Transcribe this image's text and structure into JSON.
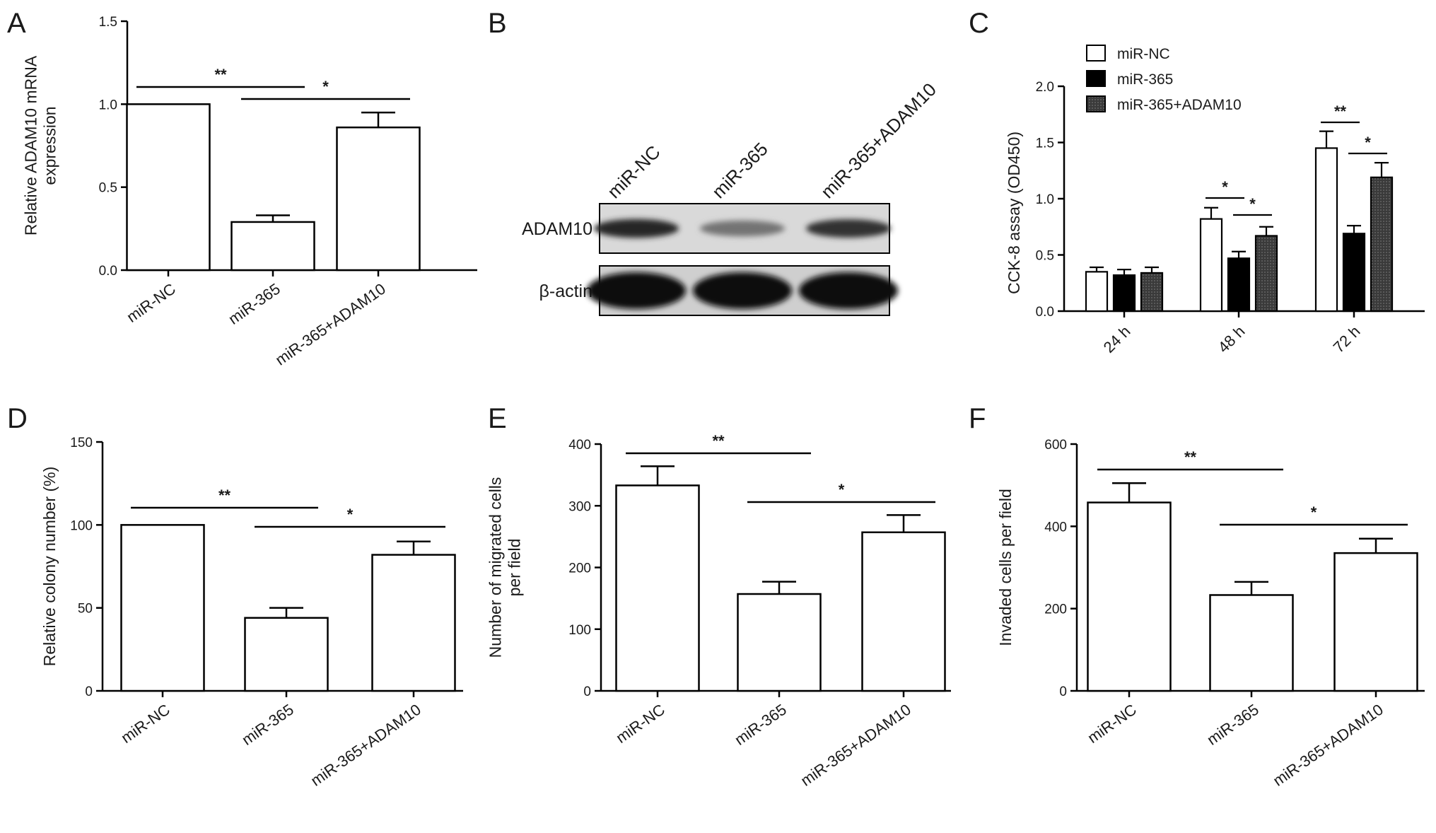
{
  "chart_data": [
    {
      "id": "A",
      "type": "bar",
      "panel_label": "A",
      "ylabel": [
        "Relative ADAM10 mRNA",
        "expression"
      ],
      "categories": [
        "miR-NC",
        "miR-365",
        "miR-365+ADAM10"
      ],
      "values": [
        1.0,
        0.29,
        0.86
      ],
      "errors": [
        0,
        0.04,
        0.09
      ],
      "ylim": [
        0,
        1.5
      ],
      "yticks": [
        "0.0",
        "0.5",
        "1.0",
        "1.5"
      ],
      "significance": [
        {
          "from": 0,
          "to": 1,
          "label": "**"
        },
        {
          "from": 1,
          "to": 2,
          "label": "*"
        }
      ]
    },
    {
      "id": "C",
      "type": "grouped-bar",
      "panel_label": "C",
      "ylabel": [
        "CCK-8 assay  (OD450)"
      ],
      "categories": [
        "24 h",
        "48 h",
        "72 h"
      ],
      "series": [
        {
          "name": "miR-NC",
          "values": [
            0.35,
            0.82,
            1.45
          ],
          "errors": [
            0.04,
            0.1,
            0.15
          ],
          "fill": "#ffffff"
        },
        {
          "name": "miR-365",
          "values": [
            0.32,
            0.47,
            0.69
          ],
          "errors": [
            0.05,
            0.06,
            0.07
          ],
          "fill": "#000000"
        },
        {
          "name": "miR-365+ADAM10",
          "values": [
            0.34,
            0.67,
            1.19
          ],
          "errors": [
            0.05,
            0.08,
            0.13
          ],
          "fill": "#4a4a4a"
        }
      ],
      "ylim": [
        0,
        2.0
      ],
      "yticks": [
        "0.0",
        "0.5",
        "1.0",
        "1.5",
        "2.0"
      ],
      "legend_position": "top-left",
      "significance": [
        {
          "group": 1,
          "from": 0,
          "to": 1,
          "label": "*"
        },
        {
          "group": 1,
          "from": 1,
          "to": 2,
          "label": "*"
        },
        {
          "group": 2,
          "from": 0,
          "to": 1,
          "label": "**"
        },
        {
          "group": 2,
          "from": 1,
          "to": 2,
          "label": "*"
        }
      ]
    },
    {
      "id": "D",
      "type": "bar",
      "panel_label": "D",
      "ylabel": [
        "Relative colony number  (%)"
      ],
      "categories": [
        "miR-NC",
        "miR-365",
        "miR-365+ADAM10"
      ],
      "values": [
        100,
        44,
        82
      ],
      "errors": [
        0,
        6,
        8
      ],
      "ylim": [
        0,
        150
      ],
      "yticks": [
        "0",
        "50",
        "100",
        "150"
      ],
      "significance": [
        {
          "from": 0,
          "to": 1,
          "label": "**"
        },
        {
          "from": 1,
          "to": 2,
          "label": "*"
        }
      ]
    },
    {
      "id": "E",
      "type": "bar",
      "panel_label": "E",
      "ylabel": [
        "Number of migrated cells",
        "per field"
      ],
      "categories": [
        "miR-NC",
        "miR-365",
        "miR-365+ADAM10"
      ],
      "values": [
        333,
        157,
        257
      ],
      "errors": [
        31,
        20,
        28
      ],
      "ylim": [
        0,
        400
      ],
      "yticks": [
        "0",
        "100",
        "200",
        "300",
        "400"
      ],
      "significance": [
        {
          "from": 0,
          "to": 1,
          "label": "**"
        },
        {
          "from": 1,
          "to": 2,
          "label": "*"
        }
      ]
    },
    {
      "id": "F",
      "type": "bar",
      "panel_label": "F",
      "ylabel": [
        "Invaded cells per field"
      ],
      "categories": [
        "miR-NC",
        "miR-365",
        "miR-365+ADAM10"
      ],
      "values": [
        458,
        233,
        335
      ],
      "errors": [
        47,
        32,
        35
      ],
      "ylim": [
        0,
        600
      ],
      "yticks": [
        "0",
        "200",
        "400",
        "600"
      ],
      "significance": [
        {
          "from": 0,
          "to": 1,
          "label": "**"
        },
        {
          "from": 1,
          "to": 2,
          "label": "*"
        }
      ]
    }
  ],
  "blot": {
    "panel_label": "B",
    "lanes": [
      "miR-NC",
      "miR-365",
      "miR-365+ADAM10"
    ],
    "rows": [
      {
        "label": "ADAM10",
        "band_intensity": [
          0.85,
          0.45,
          0.8
        ]
      },
      {
        "label": "β-actin",
        "band_intensity": [
          1.0,
          1.0,
          1.0
        ]
      }
    ]
  }
}
